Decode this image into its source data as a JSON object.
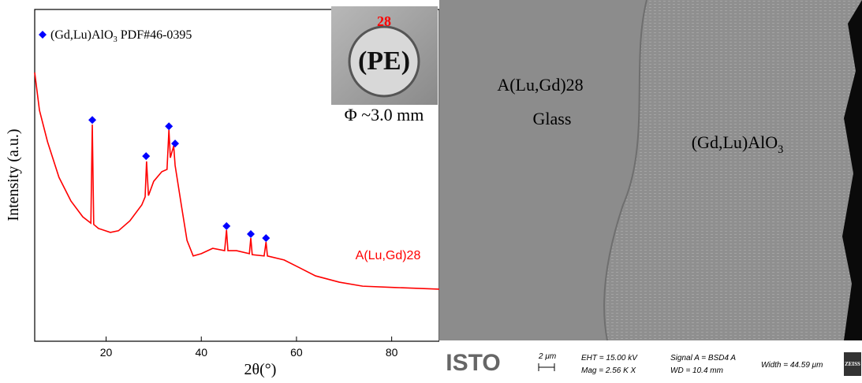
{
  "chart_data": {
    "type": "line",
    "xlabel": "2θ(°)",
    "ylabel": "Intensity (a.u.)",
    "xlim": [
      5,
      90
    ],
    "xticks": [
      20,
      40,
      60,
      80
    ],
    "ylim": [
      0,
      100
    ],
    "series": [
      {
        "name": "A(Lu,Gd)28",
        "type": "line",
        "color": "#ff0000",
        "x": [
          5,
          6,
          7.7,
          10.1,
          12.6,
          15.1,
          16.8,
          17.1,
          17.4,
          18.4,
          20.9,
          22.6,
          25.0,
          27.5,
          28.2,
          28.5,
          28.9,
          30.0,
          31.7,
          32.8,
          33.2,
          33.5,
          34.2,
          34.5,
          35.8,
          37.0,
          38.3,
          40.0,
          42.4,
          44.9,
          45.3,
          45.6,
          47.4,
          50.1,
          50.4,
          50.7,
          53.2,
          53.6,
          53.9,
          57.4,
          60.7,
          64.0,
          69.0,
          73.9,
          80.6,
          90
        ],
        "values": [
          81,
          69.6,
          60.1,
          49.4,
          42.3,
          37.5,
          35.6,
          65.3,
          35.2,
          34.0,
          32.8,
          33.3,
          36.3,
          41.1,
          43.5,
          54.2,
          43.9,
          48.2,
          51.1,
          51.8,
          63.7,
          55.3,
          58.9,
          53.0,
          41.1,
          30.4,
          25.7,
          26.4,
          28.0,
          27.3,
          33.5,
          27.3,
          27.3,
          26.4,
          31.1,
          26.1,
          25.7,
          29.9,
          25.7,
          24.5,
          22.1,
          19.7,
          17.8,
          16.6,
          16.2,
          15.7
        ]
      },
      {
        "name": "(Gd,Lu)AlO3 PDF#46-0395",
        "type": "scatter",
        "marker": "diamond",
        "color": "#0000ff",
        "x": [
          17.1,
          28.4,
          33.2,
          34.5,
          45.3,
          50.4,
          53.6
        ],
        "values": [
          66.7,
          55.8,
          64.8,
          59.6,
          34.7,
          32.3,
          31.1
        ]
      }
    ]
  },
  "inset": {
    "number": "28",
    "label": "(PE)",
    "caption": "Φ ~3.0 mm"
  },
  "sem": {
    "labels": [
      "A(Lu,Gd)28",
      "Glass",
      "(Gd,Lu)AlO3"
    ],
    "logo": "ISTO",
    "scale": "2 μm",
    "eht": "EHT = 15.00 kV",
    "mag": "Mag =  2.56 K X",
    "signal": "Signal A = BSD4 A",
    "wd": "WD = 10.4 mm",
    "width": "Width = 44.59 μm",
    "brand": "ZEISS"
  }
}
